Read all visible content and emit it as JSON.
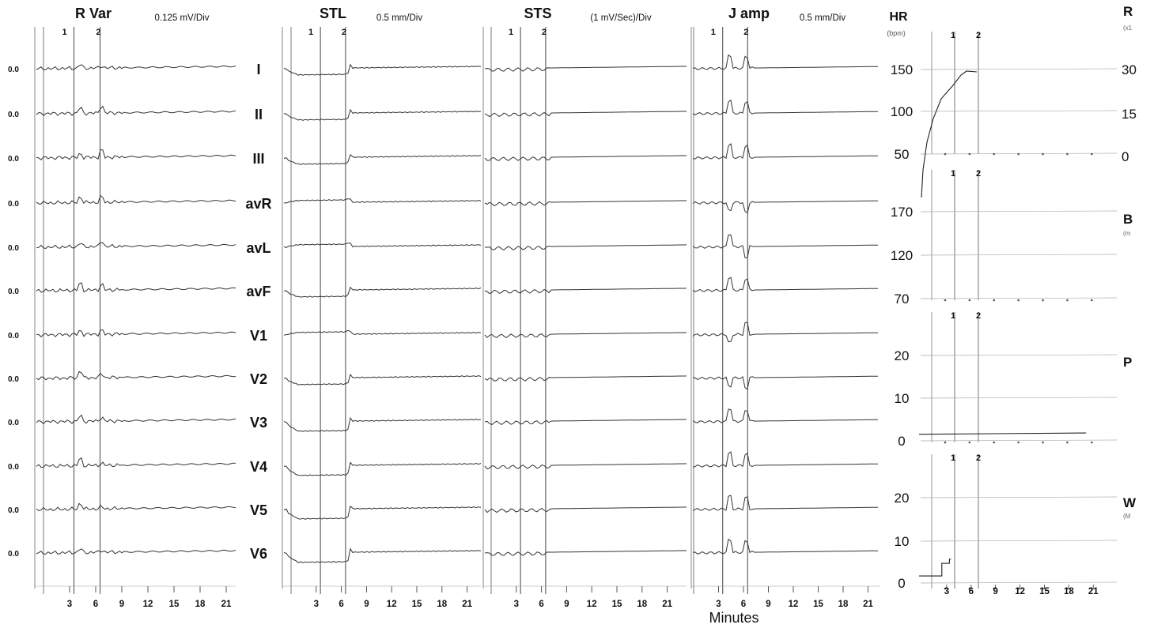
{
  "chart_data": {
    "type": "line",
    "x_axis_title": "Minutes",
    "leads": [
      "I",
      "II",
      "III",
      "avR",
      "avL",
      "avF",
      "V1",
      "V2",
      "V3",
      "V4",
      "V5",
      "V6"
    ],
    "trend_panels": [
      {
        "title": "R Var",
        "scale": "0.125 mV/Div",
        "baseline_label": "0.0",
        "marker_labels": [
          "1",
          "2"
        ],
        "marker_times": [
          3.5,
          6.5
        ],
        "x_ticks": [
          "3",
          "6",
          "9",
          "12",
          "15",
          "18",
          "21"
        ],
        "series_note": "flat traces with small spikes near events 1 and 2"
      },
      {
        "title": "STL",
        "scale": "0.5 mm/Div",
        "marker_labels": [
          "1",
          "2"
        ],
        "marker_times": [
          3.5,
          6.5
        ],
        "x_ticks": [
          "3",
          "6",
          "9",
          "12",
          "15",
          "18",
          "21"
        ],
        "series_note": "ST depression between events 1 and 2, then return to baseline"
      },
      {
        "title": "STS",
        "scale": "(1 mV/Sec)/Div",
        "marker_labels": [
          "1",
          "2"
        ],
        "marker_times": [
          3.5,
          6.5
        ],
        "x_ticks": [
          "3",
          "6",
          "9",
          "12",
          "15",
          "18",
          "21"
        ],
        "series_note": "near-flat slope traces with small deflections near events"
      },
      {
        "title": "J amp",
        "scale": "0.5 mm/Div",
        "marker_labels": [
          "1",
          "2"
        ],
        "marker_times": [
          3.5,
          6.5
        ],
        "x_ticks": [
          "3",
          "6",
          "9",
          "12",
          "15",
          "18",
          "21"
        ],
        "series_note": "sharp J-amplitude spikes around events 1 and 2"
      }
    ],
    "vital_panels": [
      {
        "title": "HR",
        "unit": "(bpm)",
        "y_ticks": [
          "150",
          "100",
          "50"
        ],
        "ylim": [
          45,
          175
        ],
        "marker_labels": [
          "1",
          "2"
        ],
        "x": [
          0,
          0.4,
          1,
          2,
          3,
          4,
          5,
          6
        ],
        "y": [
          40,
          70,
          100,
          120,
          130,
          140,
          148,
          148
        ]
      },
      {
        "title": "",
        "unit": "",
        "y_ticks": [
          "170",
          "120",
          "70"
        ],
        "ylim": [
          65,
          190
        ],
        "marker_labels": [
          "1",
          "2"
        ],
        "x": [],
        "y": []
      },
      {
        "title": "",
        "unit": "",
        "y_ticks": [
          "20",
          "10",
          "0"
        ],
        "ylim": [
          -2,
          30
        ],
        "marker_labels": [
          "1",
          "2"
        ],
        "x": [
          0,
          22
        ],
        "y": [
          0,
          0.3
        ]
      },
      {
        "title": "",
        "unit": "",
        "y_ticks": [
          "20",
          "10",
          "0"
        ],
        "ylim": [
          -2,
          30
        ],
        "marker_labels": [
          "1",
          "2"
        ],
        "x": [
          0,
          3,
          3,
          4,
          4,
          4.2
        ],
        "y": [
          1,
          1,
          4,
          4,
          5,
          5
        ],
        "x_ticks": [
          "3",
          "6",
          "9",
          "12",
          "15",
          "18",
          "21"
        ]
      }
    ],
    "right_edge_labels": [
      {
        "label": "R",
        "sub": "(x1",
        "ticks": [
          "30",
          "15",
          "0"
        ]
      },
      {
        "label": "B",
        "sub": "(m",
        "ticks": []
      },
      {
        "label": "P",
        "sub": "",
        "ticks": []
      },
      {
        "label": "W",
        "sub": "(M",
        "ticks": []
      }
    ]
  }
}
